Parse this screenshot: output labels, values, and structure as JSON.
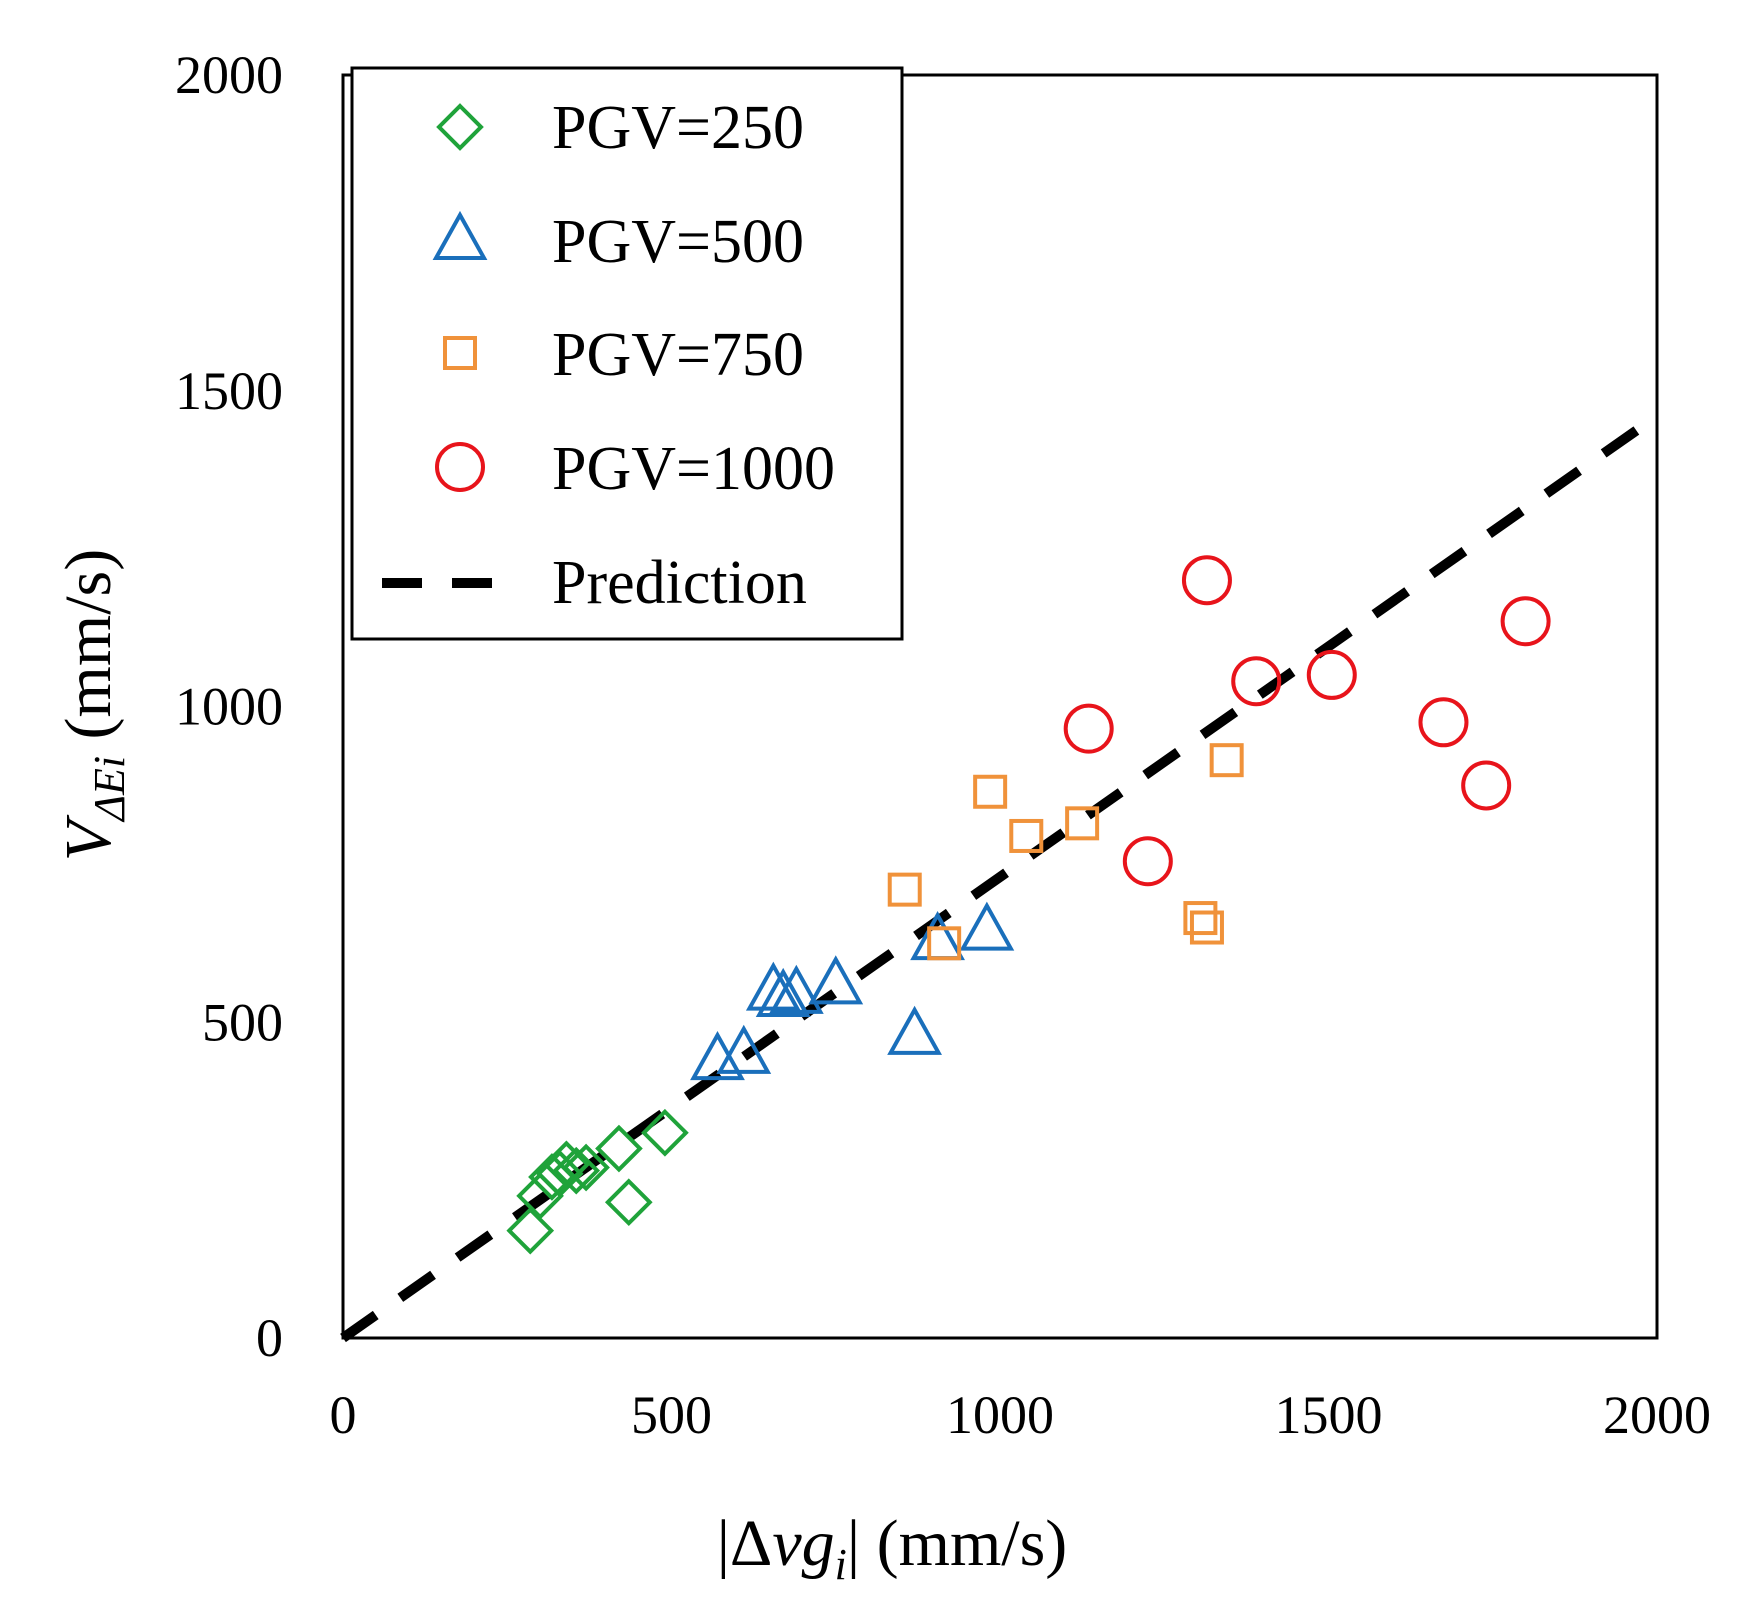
{
  "chart_data": {
    "type": "scatter",
    "title": "",
    "xlabel": "|Δvg_i| (mm/s)",
    "ylabel": "V_ΔEi (mm/s)",
    "xlabel_parts": {
      "bar_left": "|",
      "delta": "Δ",
      "var": "vg",
      "sub": "i",
      "bar_right": "|",
      "unit": " (mm/s)"
    },
    "ylabel_parts": {
      "var": "V",
      "sub": "ΔEi",
      "unit": " (mm/s)"
    },
    "xlim": [
      0,
      2000
    ],
    "ylim": [
      0,
      2000
    ],
    "xticks": [
      "0",
      "500",
      "1000",
      "1500",
      "2000"
    ],
    "yticks": [
      "0",
      "500",
      "1000",
      "1500",
      "2000"
    ],
    "grid": false,
    "legend_position": "top-left",
    "series": [
      {
        "name": "PGV=250",
        "marker": "diamond",
        "color": "#1fa33a",
        "points": [
          [
            285,
            170
          ],
          [
            300,
            225
          ],
          [
            318,
            255
          ],
          [
            340,
            275
          ],
          [
            370,
            270
          ],
          [
            420,
            300
          ],
          [
            435,
            215
          ],
          [
            490,
            325
          ],
          [
            330,
            260
          ],
          [
            355,
            265
          ]
        ]
      },
      {
        "name": "PGV=500",
        "marker": "triangle",
        "color": "#1a6fbb",
        "points": [
          [
            570,
            440
          ],
          [
            610,
            450
          ],
          [
            655,
            550
          ],
          [
            690,
            545
          ],
          [
            750,
            560
          ],
          [
            870,
            480
          ],
          [
            905,
            630
          ],
          [
            980,
            645
          ],
          [
            670,
            540
          ]
        ]
      },
      {
        "name": "PGV=750",
        "marker": "square",
        "color": "#f0923a",
        "points": [
          [
            855,
            710
          ],
          [
            915,
            625
          ],
          [
            985,
            865
          ],
          [
            1040,
            795
          ],
          [
            1125,
            815
          ],
          [
            1305,
            665
          ],
          [
            1315,
            650
          ],
          [
            1345,
            915
          ]
        ]
      },
      {
        "name": "PGV=1000",
        "marker": "circle",
        "color": "#e8141b",
        "points": [
          [
            1135,
            965
          ],
          [
            1225,
            755
          ],
          [
            1315,
            1200
          ],
          [
            1390,
            1040
          ],
          [
            1505,
            1050
          ],
          [
            1675,
            975
          ],
          [
            1740,
            875
          ],
          [
            1800,
            1135
          ]
        ]
      }
    ],
    "prediction": {
      "name": "Prediction",
      "style": "dashed",
      "color": "#000000",
      "x": [
        0,
        2000
      ],
      "y": [
        0,
        1460
      ]
    }
  }
}
